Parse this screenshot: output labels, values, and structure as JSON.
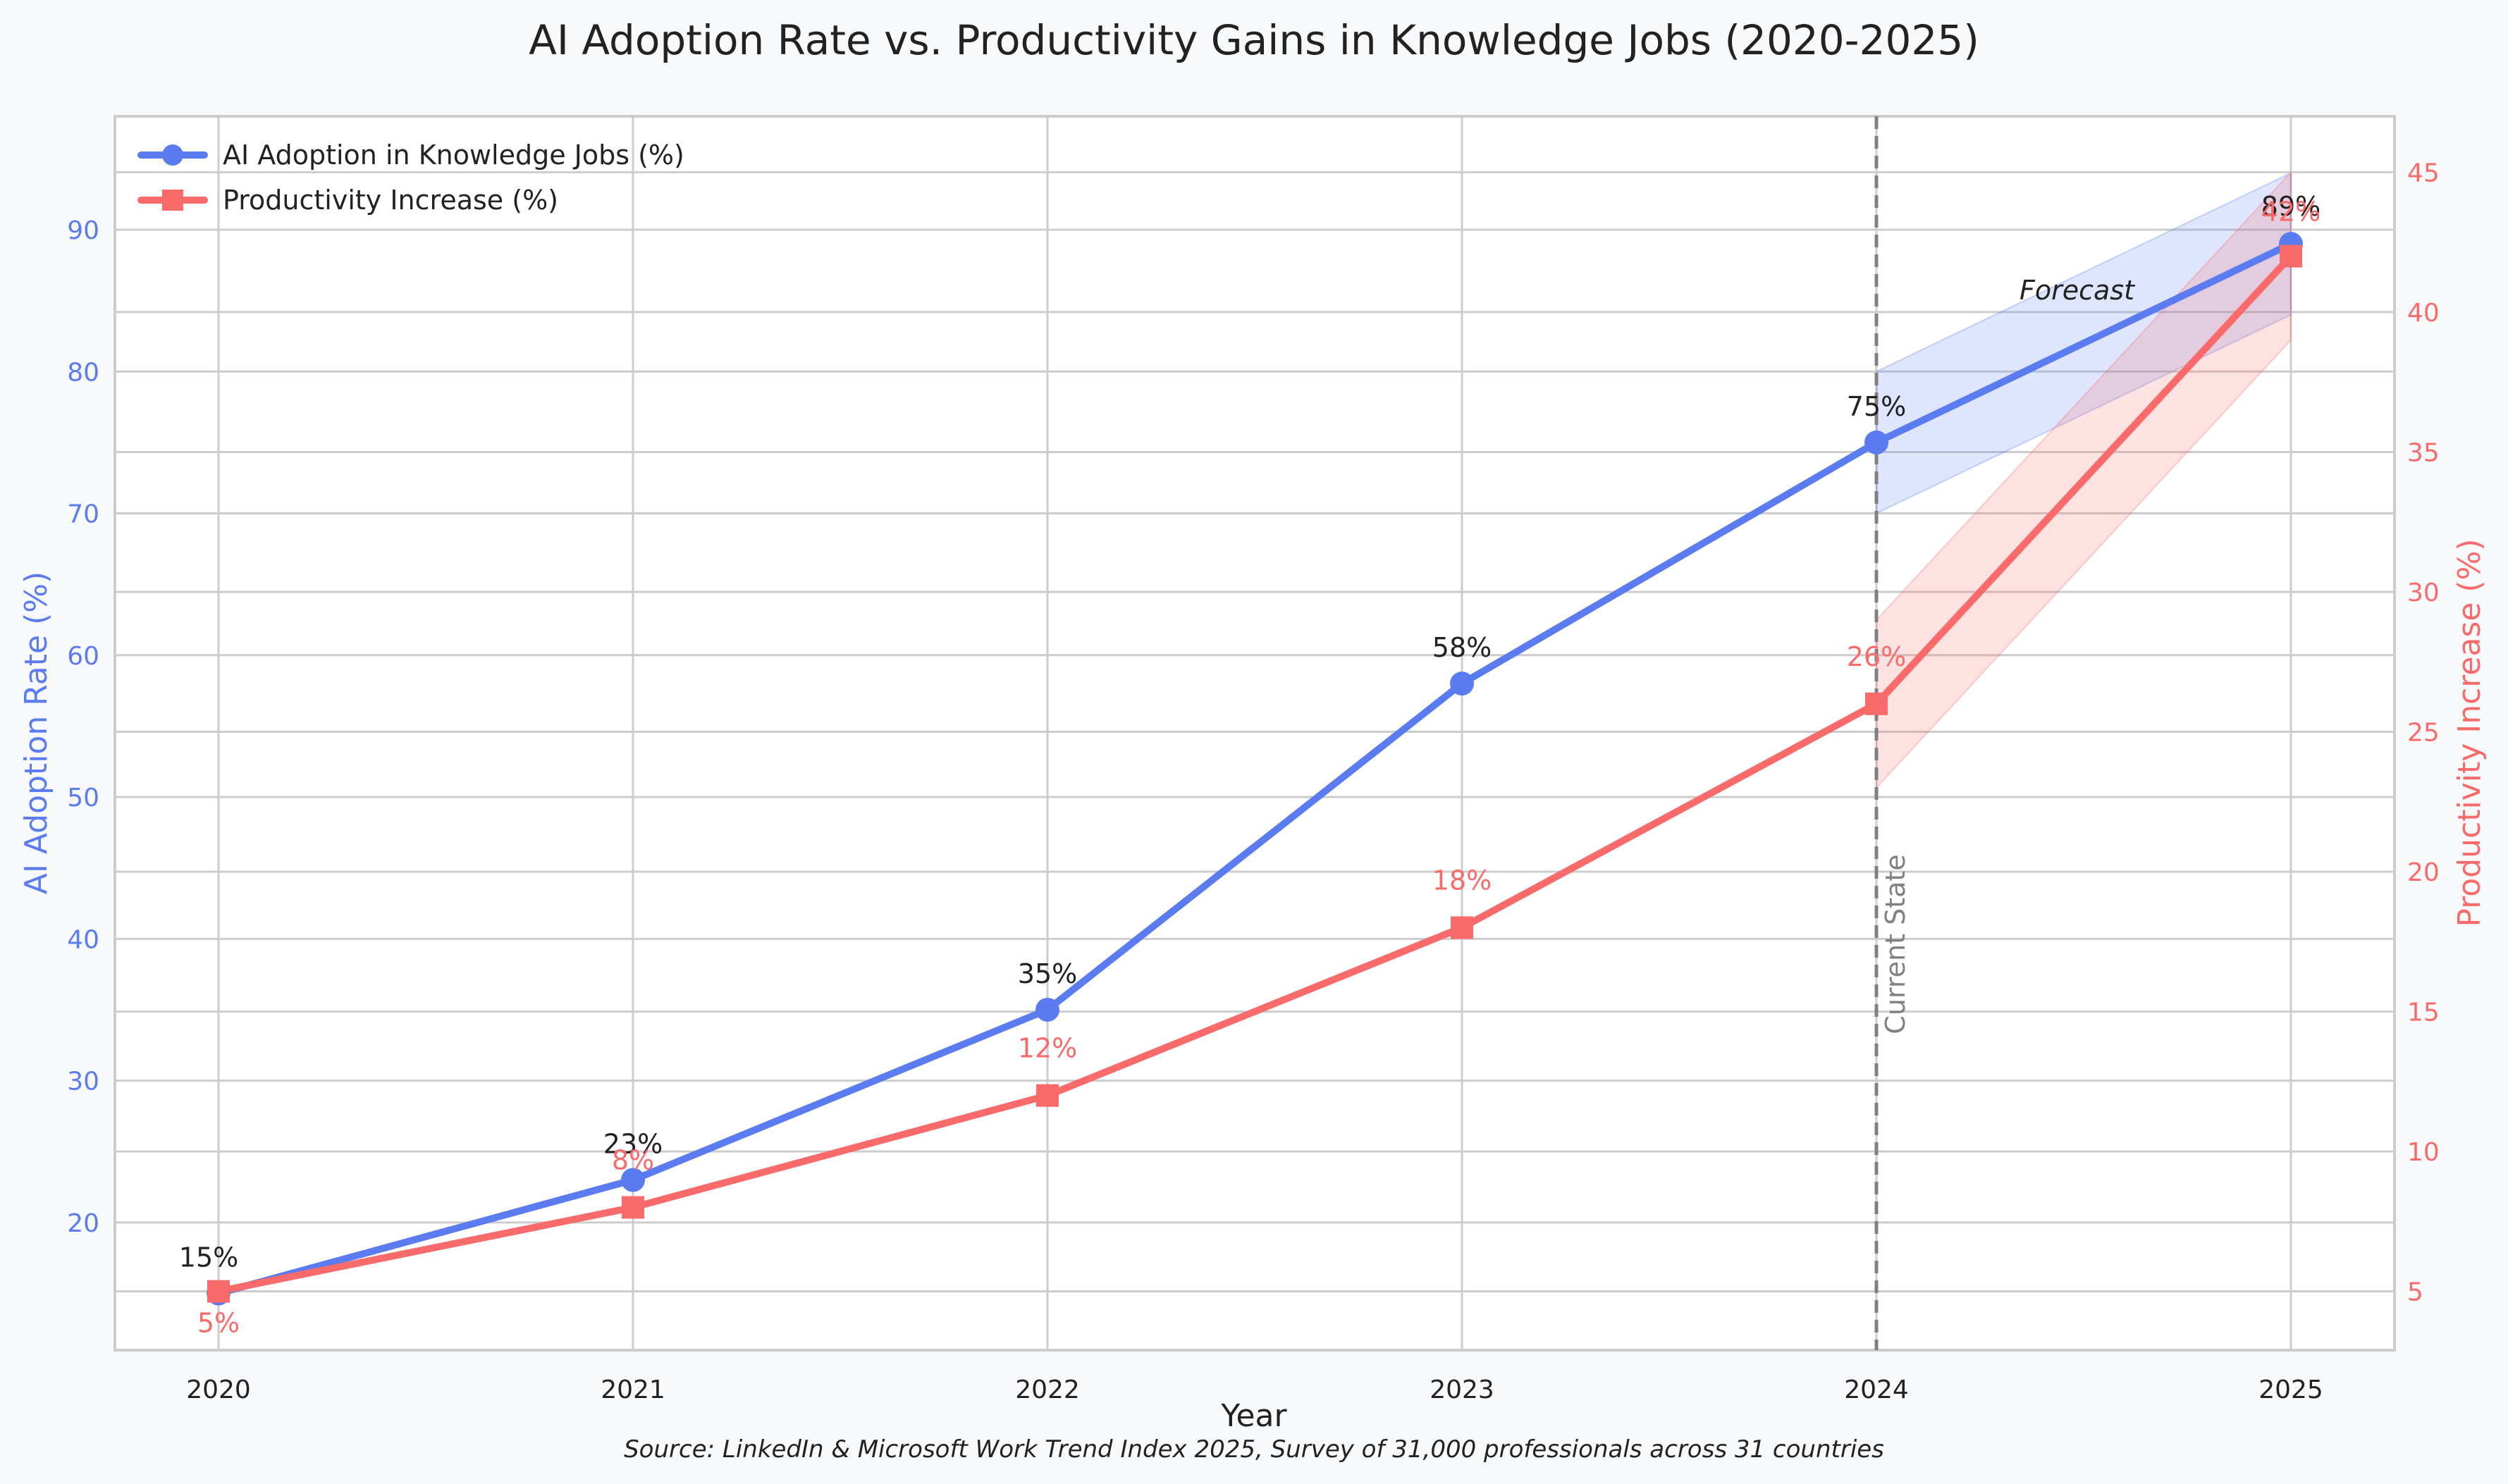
{
  "chart_data": {
    "type": "line",
    "title": "AI Adoption Rate vs. Productivity Gains in Knowledge Jobs (2020-2025)",
    "xlabel": "Year",
    "ylabel_left": "AI Adoption Rate (%)",
    "ylabel_right": "Productivity Increase (%)",
    "x": [
      2020,
      2021,
      2022,
      2023,
      2024,
      2025
    ],
    "x_tick_labels": [
      "2020",
      "2021",
      "2022",
      "2023",
      "2024",
      "2025"
    ],
    "y_left_ticks": [
      20,
      30,
      40,
      50,
      60,
      70,
      80,
      90
    ],
    "y_right_ticks": [
      5,
      10,
      15,
      20,
      25,
      30,
      35,
      40,
      45
    ],
    "y_left_range": [
      11,
      98
    ],
    "y_right_range": [
      2.9,
      47
    ],
    "series": [
      {
        "name": "AI Adoption in Knowledge Jobs (%)",
        "axis": "left",
        "values": [
          15,
          23,
          35,
          58,
          75,
          89
        ],
        "labels": [
          "15%",
          "23%",
          "35%",
          "58%",
          "75%",
          "89%"
        ],
        "color": "#5b7cf0",
        "marker": "circle",
        "forecast_band": {
          "x": [
            2024,
            2025
          ],
          "lower": [
            70,
            84
          ],
          "upper": [
            80,
            94
          ]
        }
      },
      {
        "name": "Productivity Increase (%)",
        "axis": "right",
        "values": [
          5,
          8,
          12,
          18,
          26,
          42
        ],
        "labels": [
          "5%",
          "8%",
          "12%",
          "18%",
          "26%",
          "42%"
        ],
        "color": "#f96b6b",
        "marker": "square",
        "forecast_band": {
          "x": [
            2024,
            2025
          ],
          "lower": [
            23,
            39
          ],
          "upper": [
            29,
            45
          ]
        }
      }
    ],
    "annotations": {
      "vertical_line_x": 2024,
      "vertical_line_label": "Current State",
      "forecast_label": "Forecast"
    },
    "grid": true,
    "legend_position": "top-left",
    "source_note": "Source: LinkedIn & Microsoft Work Trend Index 2025, Survey of 31,000 professionals across 31 countries"
  },
  "colors": {
    "background": "#f8f9fa",
    "plot_background": "#ffffff",
    "grid": "#cccccc",
    "left_axis": "#5b7cf0",
    "right_axis": "#f96b6b",
    "vline": "#808080",
    "text": "#222222"
  }
}
